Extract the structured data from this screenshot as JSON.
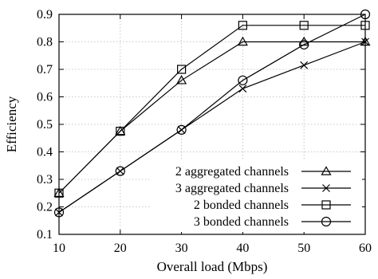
{
  "chart_data": {
    "type": "line",
    "xlabel": "Overall load (Mbps)",
    "ylabel": "Efficiency",
    "xlim": [
      10,
      60
    ],
    "ylim": [
      0.1,
      0.9
    ],
    "x_ticks": [
      10,
      20,
      30,
      40,
      50,
      60
    ],
    "y_ticks": [
      0.1,
      0.2,
      0.3,
      0.4,
      0.5,
      0.6,
      0.7,
      0.8,
      0.9
    ],
    "x_tick_labels": [
      "10",
      "20",
      "30",
      "40",
      "50",
      "60"
    ],
    "y_tick_labels": [
      "0.1",
      "0.2",
      "0.3",
      "0.4",
      "0.5",
      "0.6",
      "0.7",
      "0.8",
      "0.9"
    ],
    "grid": true,
    "legend_position": "bottom-right",
    "x": [
      10,
      20,
      30,
      40,
      50,
      60
    ],
    "series": [
      {
        "name": "2 aggregated channels",
        "marker": "triangle",
        "values": [
          0.25,
          0.475,
          0.66,
          0.8,
          0.8,
          0.8
        ]
      },
      {
        "name": "3 aggregated channels",
        "marker": "cross",
        "values": [
          0.18,
          0.33,
          0.48,
          0.63,
          0.715,
          0.8
        ]
      },
      {
        "name": "2 bonded channels",
        "marker": "square",
        "values": [
          0.25,
          0.475,
          0.7,
          0.86,
          0.86,
          0.86
        ]
      },
      {
        "name": "3 bonded channels",
        "marker": "circle",
        "values": [
          0.18,
          0.33,
          0.48,
          0.66,
          0.79,
          0.9
        ]
      }
    ]
  }
}
